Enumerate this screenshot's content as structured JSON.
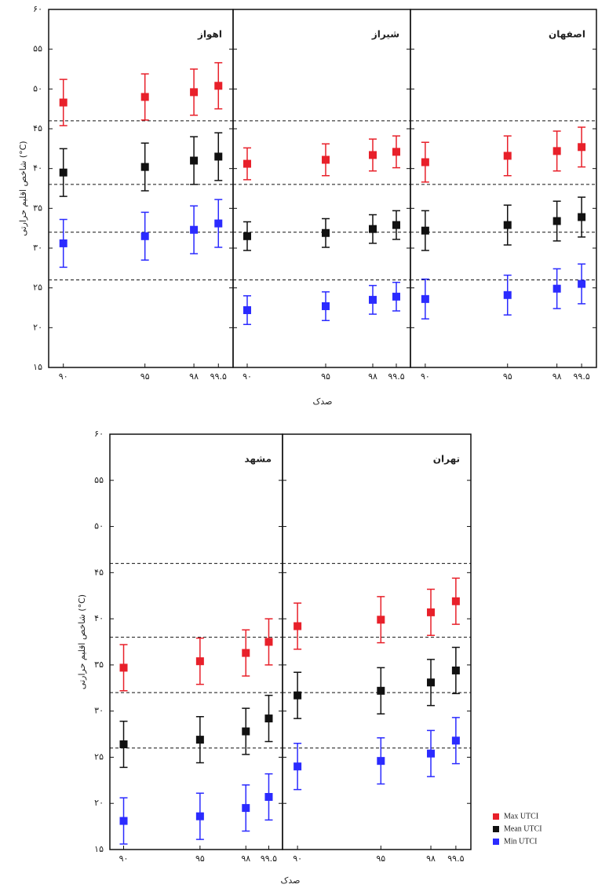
{
  "chart_data": [
    {
      "type": "errorbar",
      "ylabel": "شاخص اقلیم حرارتی (°C)",
      "xlabel": "صدک",
      "ylim": [
        15,
        60
      ],
      "yticks": [
        {
          "value": 60,
          "label": "۶۰"
        },
        {
          "value": 55,
          "label": "۵۵"
        },
        {
          "value": 50,
          "label": "۵۰"
        },
        {
          "value": 45,
          "label": "۴۵"
        },
        {
          "value": 40,
          "label": "۴۰"
        },
        {
          "value": 35,
          "label": "۳۵"
        },
        {
          "value": 30,
          "label": "۳۰"
        },
        {
          "value": 25,
          "label": "۲۵"
        },
        {
          "value": 20,
          "label": "۲۰"
        },
        {
          "value": 15,
          "label": "۱۵"
        }
      ],
      "xlim": [
        89.1,
        100.4
      ],
      "x": [
        90,
        95,
        98,
        99.5
      ],
      "xticks": [
        {
          "value": 90,
          "label": "۹۰"
        },
        {
          "value": 95,
          "label": "۹۵"
        },
        {
          "value": 98,
          "label": "۹۸"
        },
        {
          "value": 99.5,
          "label": "۹۹.۵"
        }
      ],
      "hlines": [
        46,
        38,
        32,
        26
      ],
      "panels": [
        {
          "title": "اهواز",
          "series": [
            {
              "values": [
                48.3,
                49,
                49.6,
                50.4
              ],
              "errors": [
                2.9,
                2.9,
                2.9,
                2.9
              ]
            },
            {
              "values": [
                39.5,
                40.2,
                41,
                41.5
              ],
              "errors": [
                3,
                3,
                3,
                3
              ]
            },
            {
              "values": [
                30.6,
                31.5,
                32.3,
                33.1
              ],
              "errors": [
                3,
                3,
                3,
                3
              ]
            }
          ]
        },
        {
          "title": "شیراز",
          "series": [
            {
              "values": [
                40.6,
                41.1,
                41.7,
                42.1
              ],
              "errors": [
                2,
                2,
                2,
                2
              ]
            },
            {
              "values": [
                31.5,
                31.9,
                32.4,
                32.9
              ],
              "errors": [
                1.8,
                1.8,
                1.8,
                1.8
              ]
            },
            {
              "values": [
                22.2,
                22.7,
                23.5,
                23.9
              ],
              "errors": [
                1.8,
                1.8,
                1.8,
                1.8
              ]
            }
          ]
        },
        {
          "title": "اصفهان",
          "series": [
            {
              "values": [
                40.8,
                41.6,
                42.2,
                42.7
              ],
              "errors": [
                2.5,
                2.5,
                2.5,
                2.5
              ]
            },
            {
              "values": [
                32.2,
                32.9,
                33.4,
                33.9
              ],
              "errors": [
                2.5,
                2.5,
                2.5,
                2.5
              ]
            },
            {
              "values": [
                23.6,
                24.1,
                24.9,
                25.5
              ],
              "errors": [
                2.5,
                2.5,
                2.5,
                2.5
              ]
            }
          ]
        }
      ]
    },
    {
      "type": "errorbar",
      "ylabel": "شاخص اقلیم حرارتی (°C)",
      "xlabel": "صدک",
      "ylim": [
        15,
        60
      ],
      "yticks": [
        {
          "value": 60,
          "label": "۶۰"
        },
        {
          "value": 55,
          "label": "۵۵"
        },
        {
          "value": 50,
          "label": "۵۰"
        },
        {
          "value": 45,
          "label": "۴۵"
        },
        {
          "value": 40,
          "label": "۴۰"
        },
        {
          "value": 35,
          "label": "۳۵"
        },
        {
          "value": 30,
          "label": "۳۰"
        },
        {
          "value": 25,
          "label": "۲۵"
        },
        {
          "value": 20,
          "label": "۲۰"
        },
        {
          "value": 15,
          "label": "۱۵"
        }
      ],
      "xlim": [
        89.1,
        100.4
      ],
      "x": [
        90,
        95,
        98,
        99.5
      ],
      "xticks": [
        {
          "value": 90,
          "label": "۹۰"
        },
        {
          "value": 95,
          "label": "۹۵"
        },
        {
          "value": 98,
          "label": "۹۸"
        },
        {
          "value": 99.5,
          "label": "۹۹.۵"
        }
      ],
      "hlines": [
        46,
        38,
        32,
        26
      ],
      "panels": [
        {
          "title": "مشهد",
          "series": [
            {
              "values": [
                34.7,
                35.4,
                36.3,
                37.5
              ],
              "errors": [
                2.5,
                2.5,
                2.5,
                2.5
              ]
            },
            {
              "values": [
                26.4,
                26.9,
                27.8,
                29.2
              ],
              "errors": [
                2.5,
                2.5,
                2.5,
                2.5
              ]
            },
            {
              "values": [
                18.1,
                18.6,
                19.5,
                20.7
              ],
              "errors": [
                2.5,
                2.5,
                2.5,
                2.5
              ]
            }
          ]
        },
        {
          "title": "تهران",
          "series": [
            {
              "values": [
                39.2,
                39.9,
                40.7,
                41.9
              ],
              "errors": [
                2.5,
                2.5,
                2.5,
                2.5
              ]
            },
            {
              "values": [
                31.7,
                32.2,
                33.1,
                34.4
              ],
              "errors": [
                2.5,
                2.5,
                2.5,
                2.5
              ]
            },
            {
              "values": [
                24,
                24.6,
                25.4,
                26.8
              ],
              "errors": [
                2.5,
                2.5,
                2.5,
                2.5
              ]
            }
          ]
        }
      ]
    }
  ],
  "legend": {
    "position": "lower right",
    "items": [
      {
        "name": "Max UTCI",
        "color": "#e8202a"
      },
      {
        "name": "Mean UTCI",
        "color": "#111111"
      },
      {
        "name": "Min UTCI",
        "color": "#2b2bff"
      }
    ]
  }
}
